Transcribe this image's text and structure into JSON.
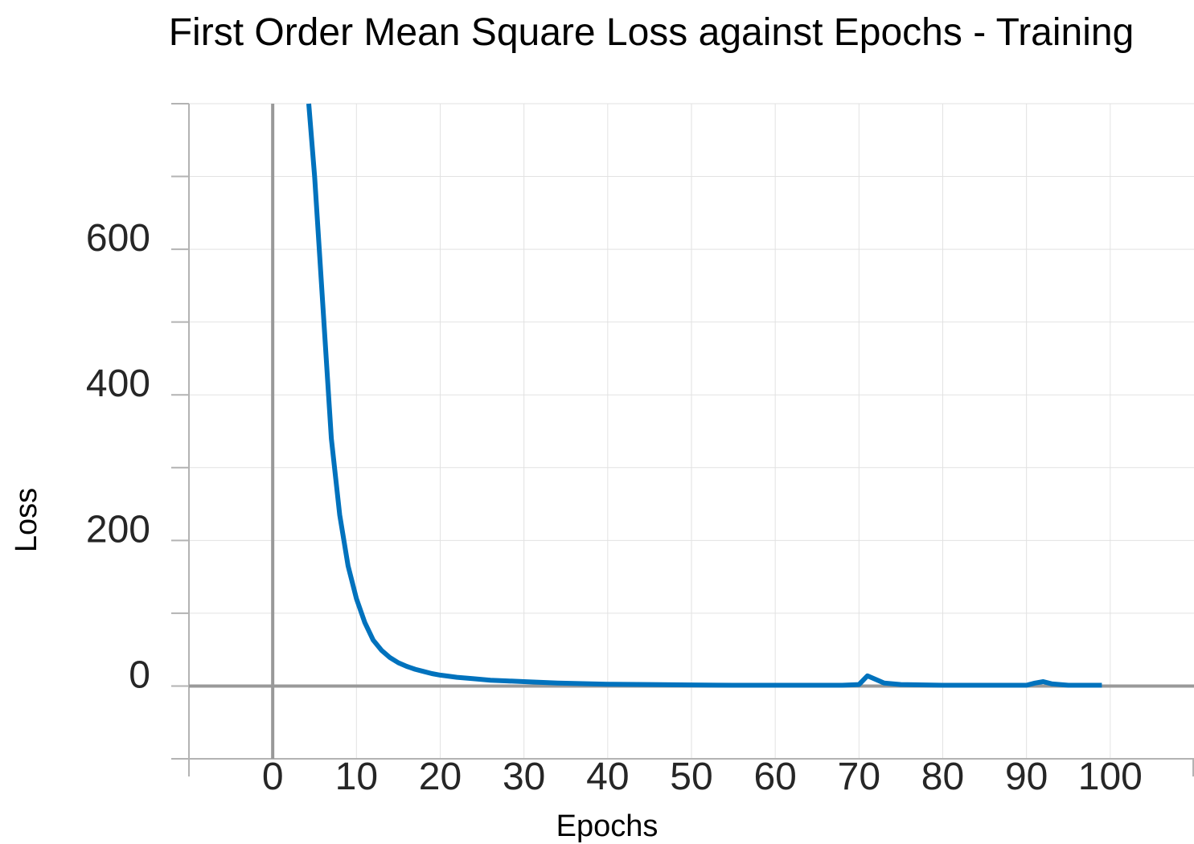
{
  "chart_data": {
    "type": "line",
    "title": "First Order Mean Square Loss against Epochs - Training",
    "xlabel": "Epochs",
    "ylabel": "Loss",
    "xlim": [
      -10,
      110
    ],
    "ylim": [
      -100,
      800
    ],
    "x_ticks": [
      0,
      10,
      20,
      30,
      40,
      50,
      60,
      70,
      80,
      90,
      100
    ],
    "x_tick_labels": [
      "0",
      "10",
      "20",
      "30",
      "40",
      "50",
      "60",
      "70",
      "80",
      "90",
      "100"
    ],
    "y_ticks": [
      0,
      200,
      400,
      600
    ],
    "y_tick_labels": [
      "0",
      "200",
      "400",
      "600"
    ],
    "y_minor_ticks": [
      -100,
      100,
      300,
      500,
      700,
      800
    ],
    "grid": true,
    "series_color": "#0072BD",
    "series": [
      {
        "x": [
          4.3,
          5,
          6,
          7,
          8,
          9,
          10,
          11,
          12,
          13,
          14,
          15,
          16,
          17,
          18,
          19,
          20,
          22,
          24,
          26,
          28,
          30,
          32,
          34,
          36,
          38,
          40,
          45,
          50,
          55,
          60,
          65,
          68,
          70,
          71,
          72,
          73,
          75,
          80,
          85,
          90,
          91,
          92,
          93,
          94,
          95,
          96,
          97,
          98,
          99
        ],
        "y": [
          800,
          700,
          520,
          340,
          235,
          165,
          120,
          87,
          63,
          49,
          39,
          32,
          27,
          23,
          20,
          17,
          15,
          12,
          10,
          8,
          7,
          6,
          5,
          4,
          3.5,
          3,
          2.5,
          2,
          1.5,
          1,
          1,
          1,
          1,
          2,
          14,
          9,
          4,
          2,
          1,
          1,
          1,
          4,
          6,
          3,
          2,
          1,
          1,
          1,
          1,
          1
        ]
      }
    ]
  }
}
